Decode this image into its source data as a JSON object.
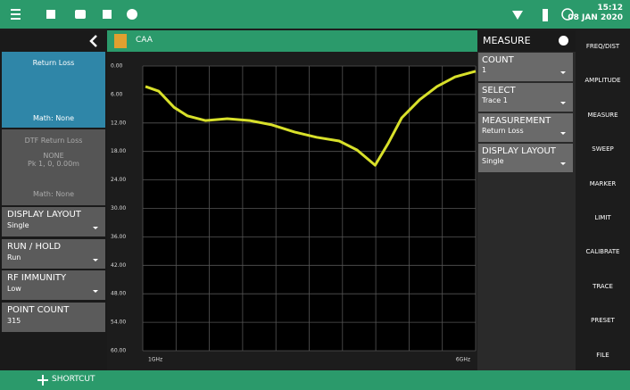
{
  "status_bar": {
    "time": "15:12",
    "date": "08 JAN 2020"
  },
  "left_panel": {
    "active_trace": {
      "title": "Return Loss",
      "math": "Math: None"
    },
    "inactive_trace": {
      "title": "DTF Return Loss",
      "lines": [
        "NONE",
        "Pk 1, 0, 0.00m"
      ],
      "math": "Math: None"
    },
    "settings": [
      {
        "label": "DISPLAY LAYOUT",
        "value": "Single",
        "dropdown": true
      },
      {
        "label": "RUN / HOLD",
        "value": "Run",
        "dropdown": true
      },
      {
        "label": "RF IMMUNITY",
        "value": "Low",
        "dropdown": true
      },
      {
        "label": "POINT COUNT",
        "value": "315",
        "dropdown": false
      }
    ]
  },
  "chart_header": "CAA",
  "chart_data": {
    "type": "line",
    "color": "#d8e02a",
    "grid": true,
    "x": [
      1.04,
      1.24,
      1.47,
      1.67,
      1.94,
      2.27,
      2.61,
      2.94,
      3.28,
      3.61,
      3.95,
      4.22,
      4.49,
      4.69,
      4.89,
      5.16,
      5.42,
      5.69,
      6.0
    ],
    "values": [
      4.3,
      5.3,
      8.7,
      10.5,
      11.5,
      11.1,
      11.5,
      12.4,
      13.9,
      15.0,
      15.8,
      17.7,
      20.9,
      16.2,
      10.9,
      7.1,
      4.3,
      2.3,
      1.1
    ],
    "xlim": [
      1,
      6
    ],
    "xticks": [
      {
        "value": 1,
        "label": "1GHz"
      },
      {
        "value": 6,
        "label": "6GHz"
      }
    ],
    "ylim": [
      60,
      0
    ],
    "yticks": [
      {
        "value": 0,
        "label": "0.00"
      },
      {
        "value": 6,
        "label": "6.00"
      },
      {
        "value": 12,
        "label": "12.00"
      },
      {
        "value": 18,
        "label": "18.00"
      },
      {
        "value": 24,
        "label": "24.00"
      },
      {
        "value": 30,
        "label": "30.00"
      },
      {
        "value": 36,
        "label": "36.00"
      },
      {
        "value": 42,
        "label": "42.00"
      },
      {
        "value": 48,
        "label": "48.00"
      },
      {
        "value": 54,
        "label": "54.00"
      },
      {
        "value": 60,
        "label": "60.00"
      }
    ]
  },
  "measure_panel": {
    "title": "MEASURE",
    "items": [
      {
        "label": "COUNT",
        "value": "1"
      },
      {
        "label": "SELECT",
        "value": "Trace 1"
      },
      {
        "label": "MEASUREMENT",
        "value": "Return Loss"
      },
      {
        "label": "DISPLAY LAYOUT",
        "value": "Single"
      }
    ]
  },
  "menu": [
    "FREQ/DIST",
    "AMPLITUDE",
    "MEASURE",
    "SWEEP",
    "MARKER",
    "LIMIT",
    "CALIBRATE",
    "TRACE",
    "PRESET",
    "FILE"
  ],
  "footer": {
    "shortcut": "SHORTCUT"
  }
}
